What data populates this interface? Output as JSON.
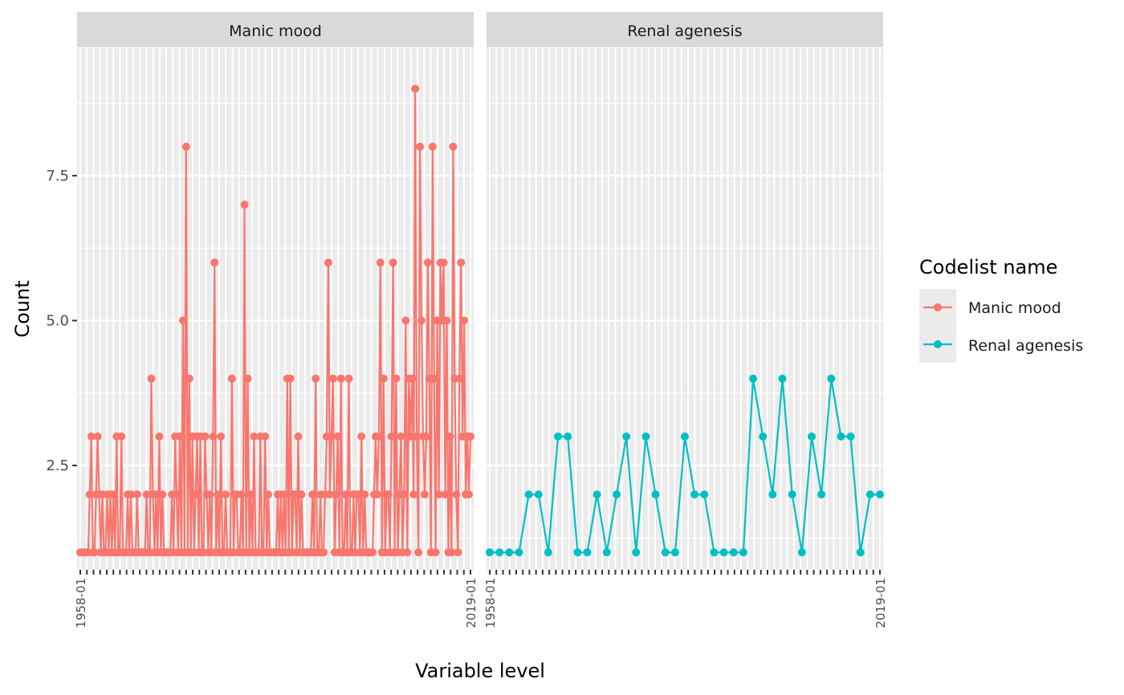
{
  "chart_data": {
    "type": "line",
    "facet_titles": [
      "Manic mood",
      "Renal agenesis"
    ],
    "xlabel": "Variable level",
    "ylabel": "Count",
    "ylim": [
      0.7,
      9.7
    ],
    "y_ticks": [
      2.5,
      5.0,
      7.5
    ],
    "y_tick_labels": [
      "2.5",
      "5.0",
      "7.5"
    ],
    "grid": true,
    "x_first_tick_label": "1958-01",
    "x_last_tick_label": "2019-01",
    "legend": {
      "title": "Codelist name",
      "position": "right",
      "entries": [
        {
          "label": "Manic mood",
          "color": "#F8766D"
        },
        {
          "label": "Renal agenesis",
          "color": "#00BFC4"
        }
      ]
    },
    "panels": [
      {
        "name": "Manic mood",
        "color": "#F8766D",
        "n_categories": 60,
        "values": [
          1,
          1,
          1,
          1,
          1,
          1,
          2,
          3,
          1,
          1,
          2,
          3,
          2,
          1,
          2,
          1,
          1,
          2,
          1,
          2,
          1,
          2,
          1,
          3,
          1,
          1,
          3,
          1,
          1,
          1,
          2,
          1,
          2,
          1,
          1,
          1,
          2,
          1,
          1,
          1,
          1,
          1,
          2,
          1,
          1,
          4,
          2,
          1,
          2,
          1,
          3,
          1,
          2,
          1,
          1,
          1,
          1,
          1,
          2,
          1,
          3,
          2,
          1,
          3,
          1,
          5,
          1,
          8,
          1,
          4,
          1,
          3,
          1,
          2,
          3,
          1,
          3,
          1,
          1,
          3,
          2,
          1,
          2,
          1,
          3,
          6,
          1,
          2,
          1,
          3,
          1,
          1,
          2,
          1,
          1,
          1,
          4,
          1,
          2,
          2,
          1,
          1,
          2,
          1,
          7,
          1,
          4,
          1,
          2,
          1,
          3,
          1,
          1,
          1,
          3,
          1,
          1,
          3,
          1,
          2,
          1,
          1,
          1,
          1,
          1,
          2,
          1,
          2,
          1,
          2,
          1,
          4,
          1,
          4,
          1,
          2,
          2,
          1,
          3,
          1,
          2,
          1,
          1,
          1,
          1,
          1,
          1,
          2,
          1,
          4,
          1,
          1,
          2,
          1,
          1,
          2,
          3,
          6,
          2,
          3,
          4,
          1,
          2,
          3,
          1,
          4,
          1,
          1,
          2,
          1,
          4,
          1,
          1,
          2,
          1,
          2,
          2,
          1,
          3,
          1,
          2,
          1,
          1,
          1,
          1,
          1,
          2,
          3,
          2,
          3,
          6,
          1,
          4,
          1,
          2,
          2,
          1,
          3,
          6,
          1,
          4,
          1,
          2,
          3,
          1,
          2,
          5,
          1,
          4,
          3,
          4,
          2,
          9,
          3,
          1,
          8,
          5,
          3,
          2,
          3,
          6,
          4,
          1,
          8,
          4,
          1,
          5,
          2,
          6,
          5,
          6,
          2,
          5,
          1,
          3,
          1,
          8,
          4,
          2,
          1,
          4,
          6,
          3,
          5,
          2,
          3,
          2,
          3
        ]
      },
      {
        "name": "Renal agenesis",
        "color": "#00BFC4",
        "n_categories": 60,
        "values": [
          1,
          1,
          1,
          1,
          2,
          2,
          1,
          3,
          3,
          1,
          1,
          2,
          1,
          2,
          3,
          1,
          3,
          2,
          1,
          1,
          3,
          2,
          2,
          1,
          1,
          1,
          1,
          4,
          3,
          2,
          4,
          2,
          1,
          3,
          2,
          4,
          3,
          3,
          1,
          2,
          2
        ]
      }
    ]
  }
}
